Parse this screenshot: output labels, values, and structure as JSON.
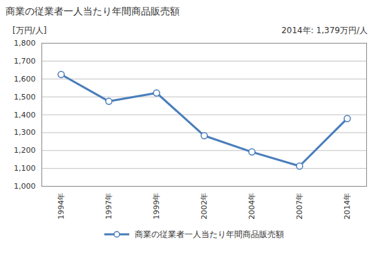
{
  "chart_data": {
    "type": "line",
    "title": "商業の従業者一人当たり年間商品販売額",
    "y_label": "[万円/人]",
    "annotations": [
      "2014年: 1,379万円/人"
    ],
    "categories": [
      "1994年",
      "1997年",
      "1999年",
      "2002年",
      "2004年",
      "2007年",
      "2014年"
    ],
    "series": [
      {
        "name": "商業の従業者一人当たり年間商品販売額",
        "color": "#4a7ebb",
        "marker": "circle",
        "values": [
          1625,
          1475,
          1522,
          1283,
          1192,
          1113,
          1379
        ]
      }
    ],
    "ylim": [
      1000,
      1800
    ],
    "yticks": [
      {
        "value": 1000,
        "label": "1,000"
      },
      {
        "value": 1100,
        "label": "1,100"
      },
      {
        "value": 1200,
        "label": "1,200"
      },
      {
        "value": 1300,
        "label": "1,300"
      },
      {
        "value": 1400,
        "label": "1,400"
      },
      {
        "value": 1500,
        "label": "1,500"
      },
      {
        "value": 1600,
        "label": "1,600"
      },
      {
        "value": 1700,
        "label": "1,700"
      },
      {
        "value": 1800,
        "label": "1,800"
      }
    ],
    "grid": true,
    "legend": "bottom"
  }
}
